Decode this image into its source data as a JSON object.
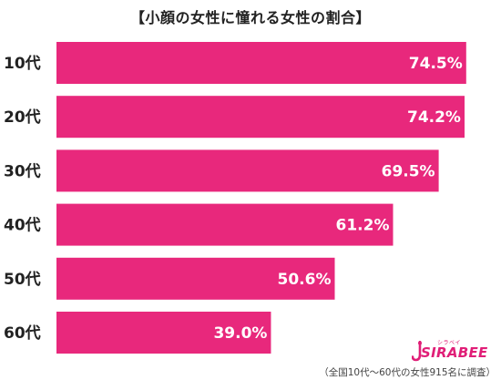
{
  "chart_data": {
    "type": "bar",
    "orientation": "horizontal",
    "title": "【小顔の女性に憧れる女性の割合】",
    "categories": [
      "10代",
      "20代",
      "30代",
      "40代",
      "50代",
      "60代"
    ],
    "values": [
      74.5,
      74.2,
      69.5,
      61.2,
      50.6,
      39.0
    ],
    "value_labels": [
      "74.5%",
      "74.2%",
      "69.5%",
      "61.2%",
      "50.6%",
      "39.0%"
    ],
    "xlim": [
      0,
      80
    ],
    "grid": false,
    "colors": {
      "bar": "#e8287c",
      "bar_label": "#ffffff"
    }
  },
  "logo": {
    "text": "SIRABEE",
    "subtext": "シラベイ"
  },
  "footnote": "（全国10代～60代の女性915名に調査）"
}
